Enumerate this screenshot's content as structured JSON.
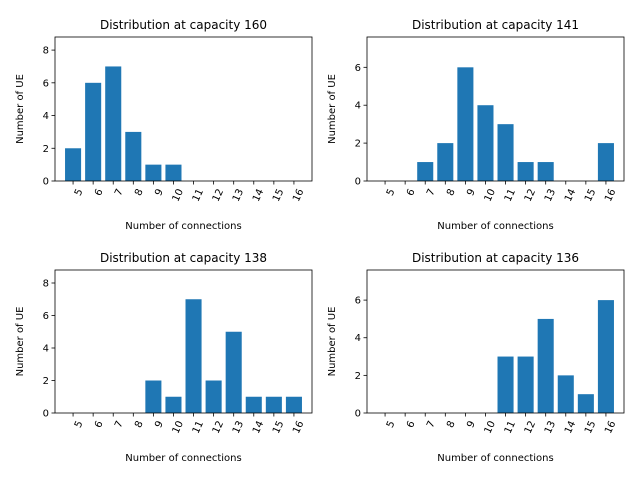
{
  "chart_data": [
    {
      "type": "bar",
      "title": "Distribution at capacity 160",
      "xlabel": "Number of connections",
      "ylabel": "Number of UE",
      "categories": [
        "5",
        "6",
        "7",
        "8",
        "9",
        "10",
        "11",
        "12",
        "13",
        "14",
        "15",
        "16"
      ],
      "values": [
        2,
        6,
        7,
        3,
        1,
        1,
        0,
        0,
        0,
        0,
        0,
        0
      ],
      "ylim": [
        0,
        8.8
      ],
      "yticks": [
        0,
        2,
        4,
        6,
        8
      ],
      "color": "#1f77b4",
      "grid": false
    },
    {
      "type": "bar",
      "title": "Distribution at capacity 141",
      "xlabel": "Number of connections",
      "ylabel": "Number of UE",
      "categories": [
        "5",
        "6",
        "7",
        "8",
        "9",
        "10",
        "11",
        "12",
        "13",
        "14",
        "15",
        "16"
      ],
      "values": [
        0,
        0,
        1,
        2,
        6,
        4,
        3,
        1,
        1,
        0,
        0,
        2
      ],
      "ylim": [
        0,
        7.6
      ],
      "yticks": [
        0,
        2,
        4,
        6
      ],
      "color": "#1f77b4",
      "grid": false
    },
    {
      "type": "bar",
      "title": "Distribution at capacity 138",
      "xlabel": "Number of connections",
      "ylabel": "Number of UE",
      "categories": [
        "5",
        "6",
        "7",
        "8",
        "9",
        "10",
        "11",
        "12",
        "13",
        "14",
        "15",
        "16"
      ],
      "values": [
        0,
        0,
        0,
        0,
        2,
        1,
        7,
        2,
        5,
        1,
        1,
        1
      ],
      "ylim": [
        0,
        8.8
      ],
      "yticks": [
        0,
        2,
        4,
        6,
        8
      ],
      "color": "#1f77b4",
      "grid": false
    },
    {
      "type": "bar",
      "title": "Distribution at capacity 136",
      "xlabel": "Number of connections",
      "ylabel": "Number of UE",
      "categories": [
        "5",
        "6",
        "7",
        "8",
        "9",
        "10",
        "11",
        "12",
        "13",
        "14",
        "15",
        "16"
      ],
      "values": [
        0,
        0,
        0,
        0,
        0,
        0,
        3,
        3,
        5,
        2,
        1,
        6
      ],
      "ylim": [
        0,
        7.6
      ],
      "yticks": [
        0,
        2,
        4,
        6
      ],
      "color": "#1f77b4",
      "grid": false
    }
  ]
}
